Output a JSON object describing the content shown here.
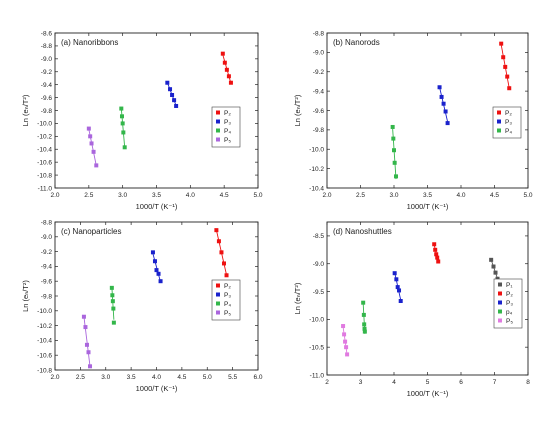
{
  "chart_data": [
    {
      "type": "scatter",
      "title": "(a) Nanoribbons",
      "xlabel": "1000/T (K⁻¹)",
      "ylabel": "Ln (eₙ/T²)",
      "xlim": [
        2.0,
        5.0
      ],
      "ylim": [
        -11.0,
        -8.6
      ],
      "xticks": [
        "2.0",
        "2.5",
        "3.0",
        "3.5",
        "4.0",
        "4.5",
        "5.0"
      ],
      "yticks": [
        "-8.6",
        "-8.8",
        "-9.0",
        "-9.2",
        "-9.4",
        "-9.6",
        "-9.8",
        "-10.0",
        "-10.2",
        "-10.4",
        "-10.6",
        "-10.8",
        "-11.0"
      ],
      "grid": false,
      "legend_position": "right-middle",
      "series": [
        {
          "name": "P₂",
          "color": "#ee1111",
          "marker": "square",
          "x": [
            4.48,
            4.51,
            4.54,
            4.57,
            4.6
          ],
          "y": [
            -8.92,
            -9.06,
            -9.17,
            -9.27,
            -9.37
          ]
        },
        {
          "name": "P₃",
          "color": "#1a22cc",
          "marker": "square",
          "x": [
            3.66,
            3.7,
            3.73,
            3.76,
            3.79
          ],
          "y": [
            -9.37,
            -9.47,
            -9.56,
            -9.64,
            -9.73
          ]
        },
        {
          "name": "P₄",
          "color": "#33b64a",
          "marker": "square",
          "x": [
            2.98,
            2.99,
            3.0,
            3.01,
            3.03
          ],
          "y": [
            -9.77,
            -9.89,
            -10.0,
            -10.14,
            -10.37
          ]
        },
        {
          "name": "P₅",
          "color": "#aa66dd",
          "marker": "square",
          "x": [
            2.5,
            2.52,
            2.54,
            2.57,
            2.61
          ],
          "y": [
            -10.08,
            -10.2,
            -10.31,
            -10.44,
            -10.65
          ]
        }
      ]
    },
    {
      "type": "scatter",
      "title": "(b) Nanorods",
      "xlabel": "1000/T (K⁻¹)",
      "ylabel": "Ln (eₙ/T²)",
      "xlim": [
        2.0,
        5.0
      ],
      "ylim": [
        -10.4,
        -8.8
      ],
      "xticks": [
        "2.0",
        "2.5",
        "3.0",
        "3.5",
        "4.0",
        "4.5",
        "5.0"
      ],
      "yticks": [
        "-8.8",
        "-9.0",
        "-9.2",
        "-9.4",
        "-9.6",
        "-9.8",
        "-10.0",
        "-10.2",
        "-10.4"
      ],
      "grid": false,
      "legend_position": "right-middle",
      "series": [
        {
          "name": "P₂",
          "color": "#ee1111",
          "marker": "square",
          "x": [
            4.6,
            4.63,
            4.66,
            4.69,
            4.72
          ],
          "y": [
            -8.91,
            -9.05,
            -9.15,
            -9.25,
            -9.37
          ]
        },
        {
          "name": "P₃",
          "color": "#1a22cc",
          "marker": "square",
          "x": [
            3.68,
            3.71,
            3.74,
            3.77,
            3.8
          ],
          "y": [
            -9.36,
            -9.46,
            -9.53,
            -9.61,
            -9.73
          ]
        },
        {
          "name": "P₄",
          "color": "#33b64a",
          "marker": "square",
          "x": [
            2.98,
            2.99,
            3.0,
            3.01,
            3.03
          ],
          "y": [
            -9.77,
            -9.89,
            -10.01,
            -10.14,
            -10.28
          ]
        }
      ]
    },
    {
      "type": "scatter",
      "title": "(c) Nanoparticles",
      "xlabel": "1000/T (K⁻¹)",
      "ylabel": "Ln (eₙ/T²)",
      "xlim": [
        2.0,
        6.0
      ],
      "ylim": [
        -10.8,
        -8.8
      ],
      "xticks": [
        "2.0",
        "2.5",
        "3.0",
        "3.5",
        "4.0",
        "4.5",
        "5.0",
        "5.5",
        "6.0"
      ],
      "yticks": [
        "-8.8",
        "-9.0",
        "-9.2",
        "-9.4",
        "-9.6",
        "-9.8",
        "-10.0",
        "-10.2",
        "-10.4",
        "-10.6",
        "-10.8"
      ],
      "grid": false,
      "legend_position": "right-middle",
      "series": [
        {
          "name": "P₂",
          "color": "#ee1111",
          "marker": "square",
          "x": [
            5.18,
            5.23,
            5.28,
            5.33,
            5.38
          ],
          "y": [
            -8.91,
            -9.06,
            -9.21,
            -9.36,
            -9.52
          ]
        },
        {
          "name": "P₃",
          "color": "#1a22cc",
          "marker": "square",
          "x": [
            3.93,
            3.97,
            4.0,
            4.04,
            4.08
          ],
          "y": [
            -9.21,
            -9.33,
            -9.45,
            -9.5,
            -9.6
          ]
        },
        {
          "name": "P₄",
          "color": "#33b64a",
          "marker": "square",
          "x": [
            3.12,
            3.13,
            3.14,
            3.15,
            3.16
          ],
          "y": [
            -9.69,
            -9.79,
            -9.87,
            -9.97,
            -10.16
          ]
        },
        {
          "name": "P₅",
          "color": "#aa66dd",
          "marker": "square",
          "x": [
            2.57,
            2.6,
            2.63,
            2.66,
            2.69
          ],
          "y": [
            -10.08,
            -10.22,
            -10.46,
            -10.56,
            -10.75
          ]
        }
      ]
    },
    {
      "type": "scatter",
      "title": "(d) Nanoshuttles",
      "xlabel": "1000/T (K⁻¹)",
      "ylabel": "Ln (eₙ/T²)",
      "xlim": [
        2,
        8
      ],
      "ylim": [
        -11.0,
        -8.25
      ],
      "xticks": [
        "2",
        "3",
        "4",
        "5",
        "6",
        "7",
        "8"
      ],
      "yticks": [
        "-8.5",
        "-9.0",
        "-9.5",
        "-10.0",
        "-10.5",
        "-11.0"
      ],
      "grid": false,
      "legend_position": "right-middle",
      "series": [
        {
          "name": "P₁",
          "color": "#555555",
          "marker": "square",
          "x": [
            6.9,
            6.97,
            7.03,
            7.09,
            7.15
          ],
          "y": [
            -8.93,
            -9.05,
            -9.16,
            -9.27,
            -9.38
          ]
        },
        {
          "name": "P₂",
          "color": "#ee1111",
          "marker": "square",
          "x": [
            5.2,
            5.23,
            5.26,
            5.29,
            5.32
          ],
          "y": [
            -8.65,
            -8.75,
            -8.83,
            -8.89,
            -8.96
          ]
        },
        {
          "name": "P₃",
          "color": "#1a22cc",
          "marker": "square",
          "x": [
            4.02,
            4.07,
            4.11,
            4.15,
            4.2
          ],
          "y": [
            -9.17,
            -9.28,
            -9.42,
            -9.48,
            -9.67
          ]
        },
        {
          "name": "p₄",
          "color": "#33b64a",
          "marker": "square",
          "x": [
            3.08,
            3.1,
            3.11,
            3.12,
            3.13
          ],
          "y": [
            -9.7,
            -9.92,
            -10.09,
            -10.17,
            -10.22
          ]
        },
        {
          "name": "P₅",
          "color": "#e07ae0",
          "marker": "square",
          "x": [
            2.48,
            2.51,
            2.54,
            2.57,
            2.6
          ],
          "y": [
            -10.12,
            -10.27,
            -10.4,
            -10.5,
            -10.63
          ]
        }
      ]
    }
  ]
}
